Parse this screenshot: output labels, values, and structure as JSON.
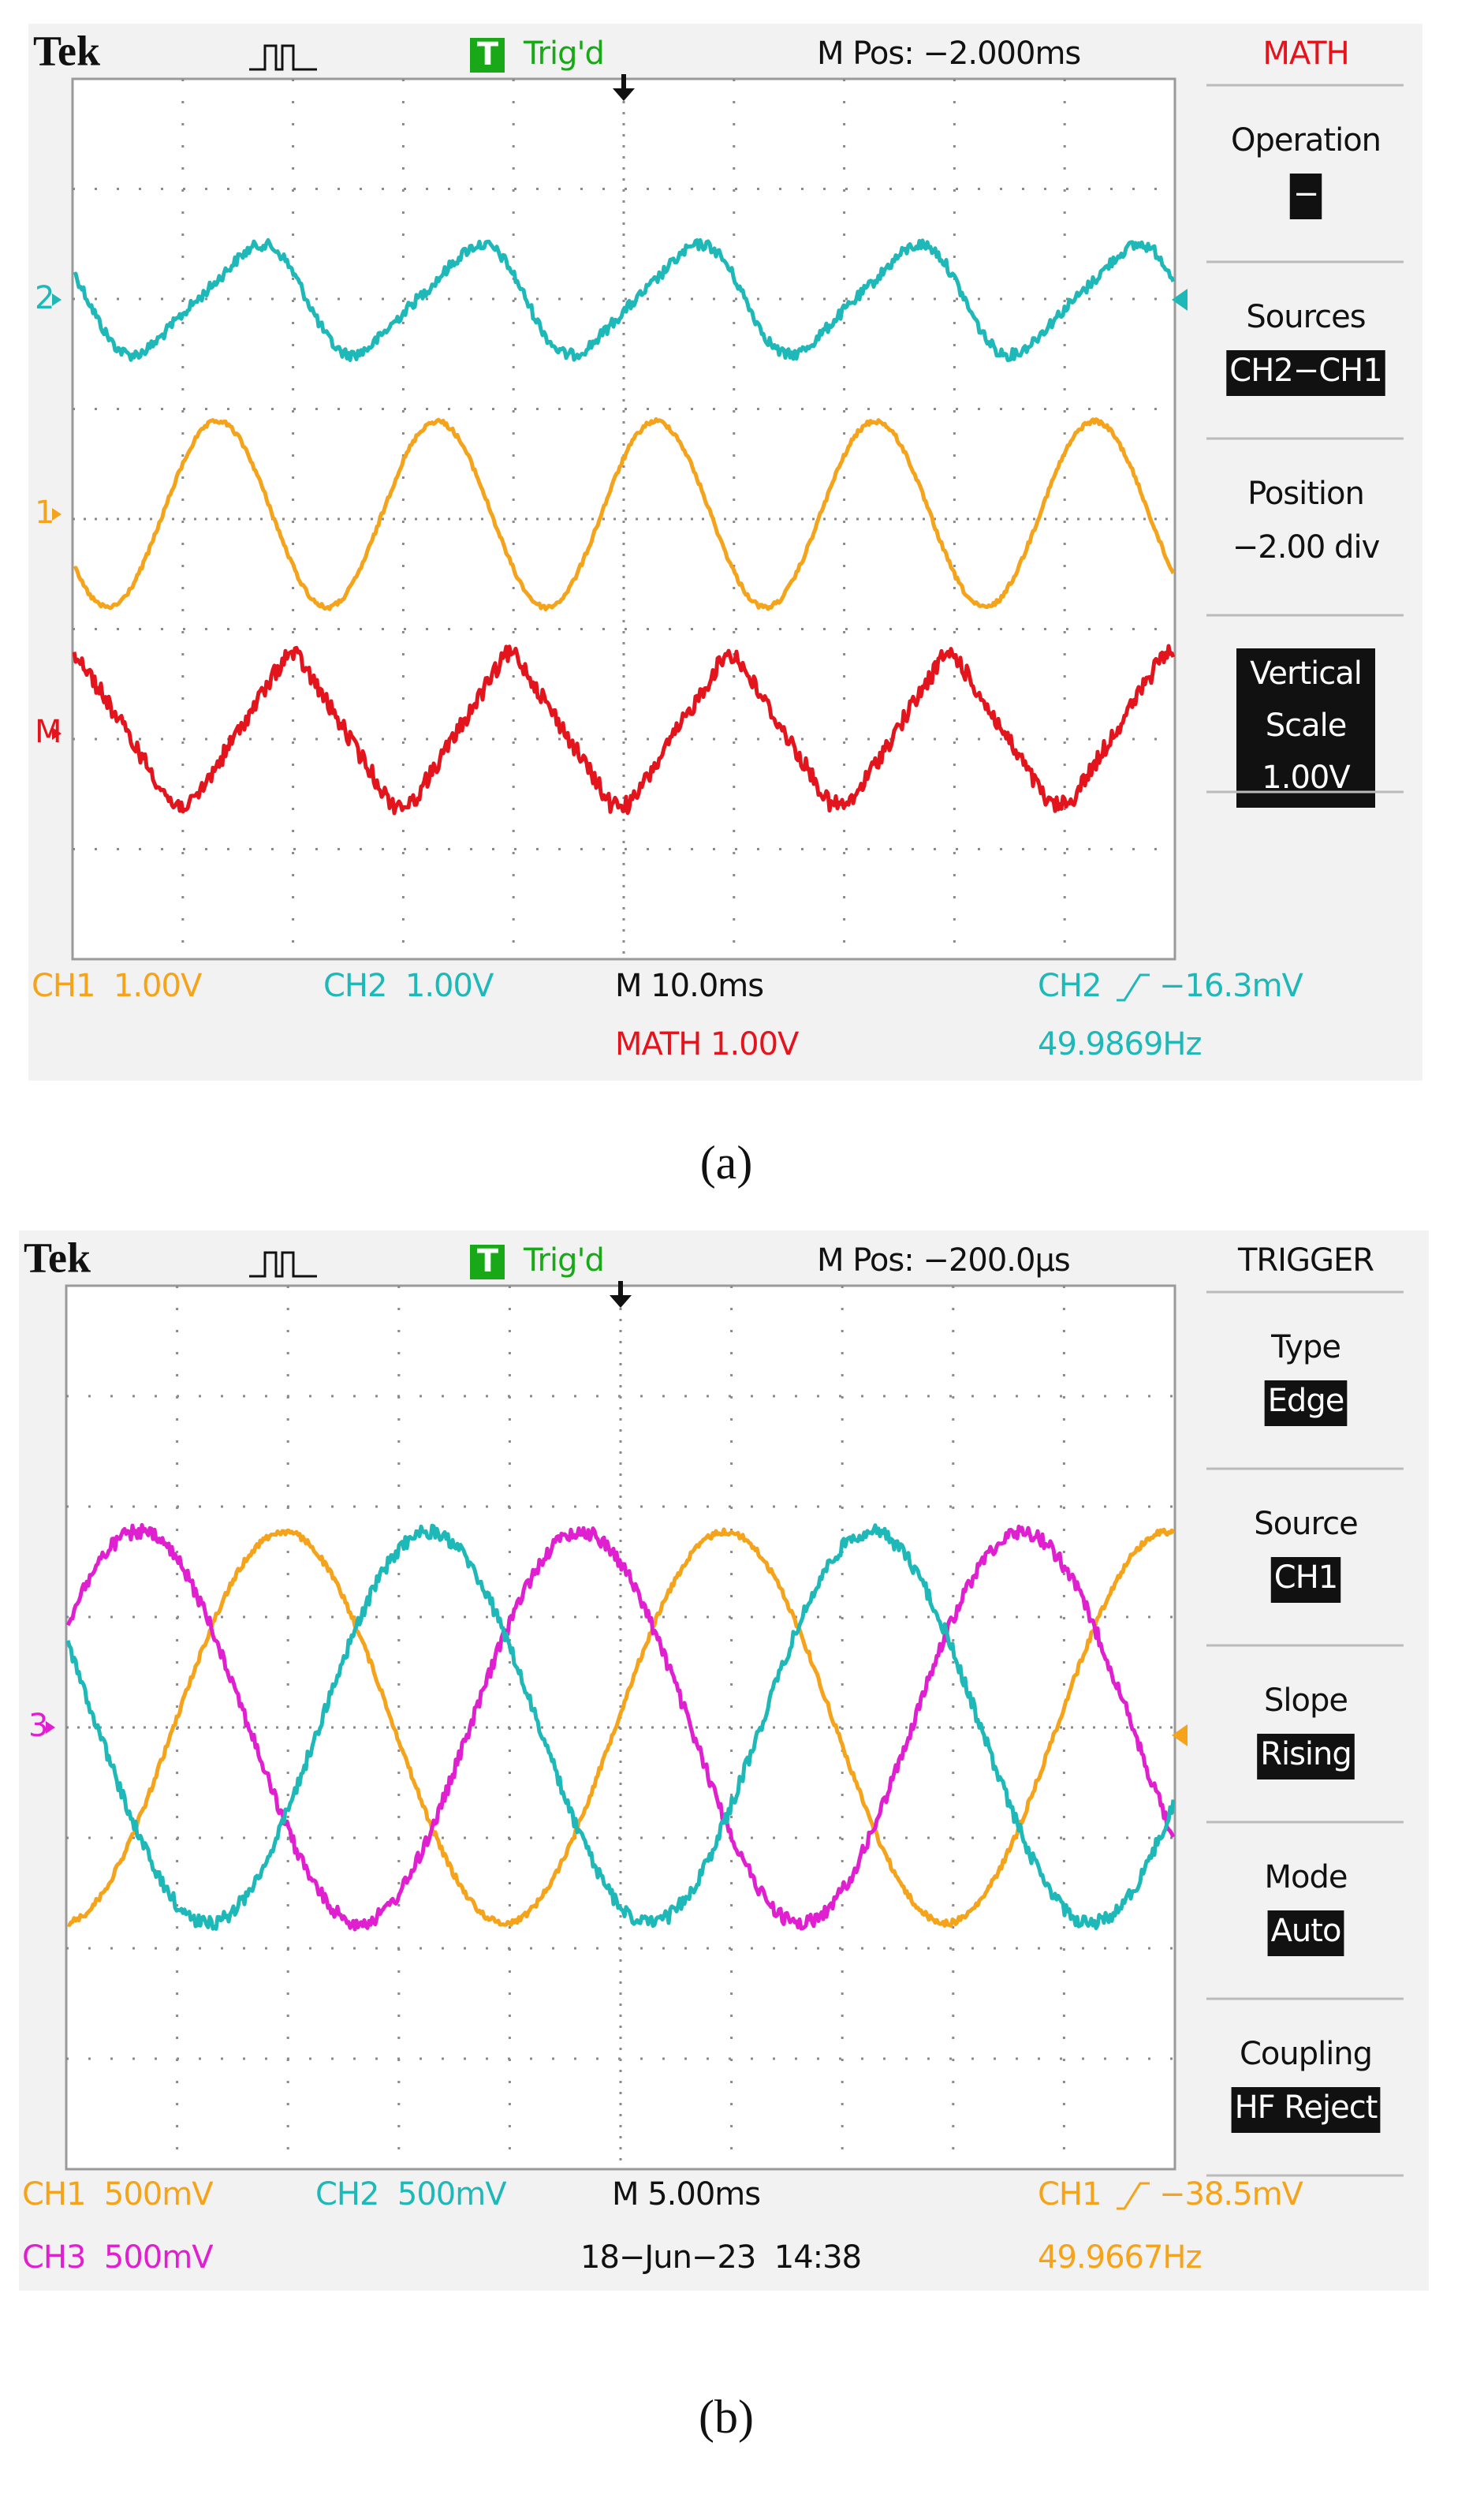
{
  "panels": [
    {
      "brand": "Tek",
      "trigger_icon": "T",
      "trigger_status": "Trig'd",
      "position": "M Pos: −2.000ms",
      "menu_title": "MATH",
      "menu_title_color": "#e4141c",
      "menu": [
        {
          "label": [
            "Operation"
          ],
          "value": "−"
        },
        {
          "label": [
            "Sources"
          ],
          "value": "CH2−CH1"
        },
        {
          "label": [
            "Position"
          ],
          "value": "−2.00 div",
          "plain": true
        },
        {
          "lines": [
            "Vertical",
            "Scale",
            "1.00V"
          ]
        }
      ],
      "channel_markers": [
        {
          "text": "2",
          "color": "#1fb8b8"
        },
        {
          "text": "1",
          "color": "#f5a31a"
        },
        {
          "text": "M",
          "color": "#e4141c"
        }
      ],
      "status": [
        {
          "text": "CH1  1.00V",
          "color": "#f5a31a"
        },
        {
          "text": "CH2  1.00V",
          "color": "#1fb8b8"
        },
        {
          "text": "M 10.0ms",
          "color": "#111111"
        },
        {
          "text": "MATH 1.00V",
          "color": "#e4141c"
        },
        {
          "text": "49.9869Hz",
          "color": "#1fb8b8"
        }
      ],
      "trigger": {
        "channel": "CH2",
        "level": "−16.3mV",
        "color": "#1fb8b8"
      },
      "caption": "(a)"
    },
    {
      "brand": "Tek",
      "trigger_icon": "T",
      "trigger_status": "Trig'd",
      "position": "M Pos: −200.0µs",
      "menu_title": "TRIGGER",
      "menu_title_color": "#111111",
      "menu": [
        {
          "label": [
            "Type"
          ],
          "value": "Edge"
        },
        {
          "label": [
            "Source"
          ],
          "value": "CH1"
        },
        {
          "label": [
            "Slope"
          ],
          "value": "Rising"
        },
        {
          "label": [
            "Mode"
          ],
          "value": "Auto"
        },
        {
          "label": [
            "Coupling"
          ],
          "value": "HF Reject"
        }
      ],
      "channel_markers": [
        {
          "text": "3",
          "color": "#e020d0"
        }
      ],
      "status": [
        {
          "text": "CH1  500mV",
          "color": "#f5a31a"
        },
        {
          "text": "CH2  500mV",
          "color": "#1fb8b8"
        },
        {
          "text": "M 5.00ms",
          "color": "#111111"
        },
        {
          "text": "CH3  500mV",
          "color": "#e020d0"
        },
        {
          "text": "18−Jun−23  14:38",
          "color": "#111111"
        },
        {
          "text": "49.9667Hz",
          "color": "#f5a31a"
        }
      ],
      "trigger": {
        "channel": "CH1",
        "level": "−38.5mV",
        "color": "#f5a31a"
      },
      "caption": "(b)"
    }
  ]
}
